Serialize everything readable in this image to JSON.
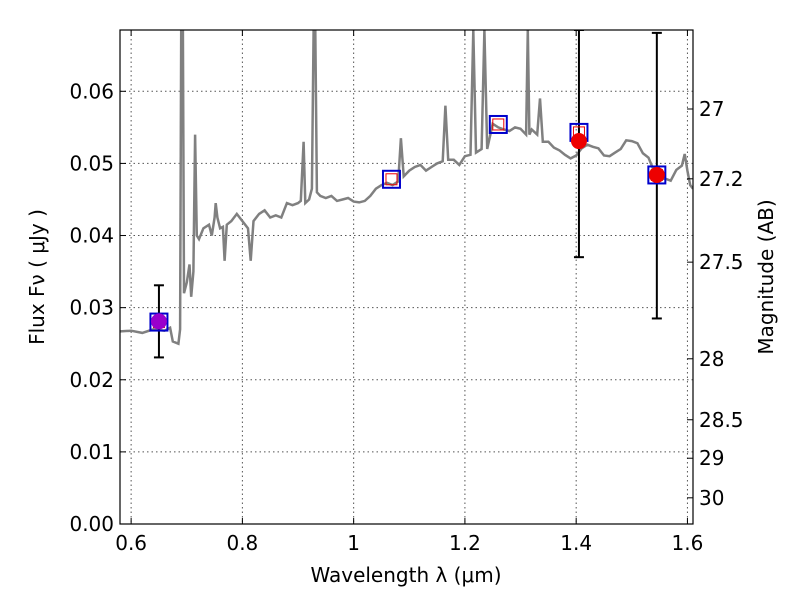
{
  "chart_data": {
    "type": "line",
    "xlabel": "Wavelength  λ (μm)",
    "ylabel": "Flux  Fν  ( μJy )",
    "y2label": "Magnitude (AB)",
    "xlim": [
      0.58,
      1.61
    ],
    "ylim": [
      0.0,
      0.0685
    ],
    "grid": true,
    "x_ticks": [
      "0.6",
      "0.8",
      "1",
      "1.2",
      "1.4",
      "1.6"
    ],
    "x_tick_values": [
      0.6,
      0.8,
      1.0,
      1.2,
      1.4,
      1.6
    ],
    "y_ticks": [
      "0.00",
      "0.01",
      "0.02",
      "0.03",
      "0.04",
      "0.05",
      "0.06"
    ],
    "y_tick_values": [
      0.0,
      0.01,
      0.02,
      0.03,
      0.04,
      0.05,
      0.06
    ],
    "mag_ticks": [
      "27",
      "27.2",
      "27.5",
      "28",
      "28.5",
      "29",
      "30"
    ],
    "mag_tick_values": [
      27.0,
      27.2,
      27.5,
      28.0,
      28.5,
      29.0,
      30.0
    ],
    "model_spectrum": {
      "color": "#808080",
      "points": [
        [
          0.58,
          0.0267
        ],
        [
          0.6,
          0.0268
        ],
        [
          0.62,
          0.0265
        ],
        [
          0.64,
          0.027
        ],
        [
          0.66,
          0.0268
        ],
        [
          0.67,
          0.0272
        ],
        [
          0.675,
          0.0253
        ],
        [
          0.685,
          0.025
        ],
        [
          0.688,
          0.027
        ],
        [
          0.69,
          0.0685
        ],
        [
          0.693,
          0.0685
        ],
        [
          0.695,
          0.032
        ],
        [
          0.7,
          0.0335
        ],
        [
          0.705,
          0.036
        ],
        [
          0.708,
          0.0315
        ],
        [
          0.712,
          0.035
        ],
        [
          0.715,
          0.054
        ],
        [
          0.718,
          0.04
        ],
        [
          0.722,
          0.0395
        ],
        [
          0.73,
          0.041
        ],
        [
          0.74,
          0.0415
        ],
        [
          0.745,
          0.04
        ],
        [
          0.75,
          0.0425
        ],
        [
          0.752,
          0.0445
        ],
        [
          0.755,
          0.0425
        ],
        [
          0.76,
          0.041
        ],
        [
          0.765,
          0.0412
        ],
        [
          0.768,
          0.0365
        ],
        [
          0.772,
          0.0415
        ],
        [
          0.78,
          0.042
        ],
        [
          0.79,
          0.043
        ],
        [
          0.8,
          0.042
        ],
        [
          0.81,
          0.041
        ],
        [
          0.815,
          0.0365
        ],
        [
          0.82,
          0.042
        ],
        [
          0.83,
          0.043
        ],
        [
          0.84,
          0.0435
        ],
        [
          0.85,
          0.0425
        ],
        [
          0.86,
          0.0428
        ],
        [
          0.87,
          0.0425
        ],
        [
          0.88,
          0.0445
        ],
        [
          0.89,
          0.0442
        ],
        [
          0.9,
          0.0445
        ],
        [
          0.905,
          0.0448
        ],
        [
          0.91,
          0.053
        ],
        [
          0.913,
          0.0445
        ],
        [
          0.92,
          0.045
        ],
        [
          0.925,
          0.0465
        ],
        [
          0.928,
          0.0685
        ],
        [
          0.931,
          0.0685
        ],
        [
          0.934,
          0.046
        ],
        [
          0.94,
          0.0455
        ],
        [
          0.95,
          0.0452
        ],
        [
          0.96,
          0.0455
        ],
        [
          0.97,
          0.0448
        ],
        [
          0.98,
          0.045
        ],
        [
          0.99,
          0.0452
        ],
        [
          1.0,
          0.0447
        ],
        [
          1.01,
          0.0446
        ],
        [
          1.02,
          0.0448
        ],
        [
          1.03,
          0.0455
        ],
        [
          1.04,
          0.0465
        ],
        [
          1.05,
          0.047
        ],
        [
          1.06,
          0.0473
        ],
        [
          1.07,
          0.047
        ],
        [
          1.08,
          0.0475
        ],
        [
          1.085,
          0.0535
        ],
        [
          1.09,
          0.0482
        ],
        [
          1.1,
          0.049
        ],
        [
          1.11,
          0.0495
        ],
        [
          1.12,
          0.0498
        ],
        [
          1.13,
          0.049
        ],
        [
          1.14,
          0.0495
        ],
        [
          1.15,
          0.05
        ],
        [
          1.16,
          0.0503
        ],
        [
          1.165,
          0.058
        ],
        [
          1.17,
          0.0505
        ],
        [
          1.18,
          0.0505
        ],
        [
          1.19,
          0.0498
        ],
        [
          1.2,
          0.051
        ],
        [
          1.21,
          0.0512
        ],
        [
          1.215,
          0.0685
        ],
        [
          1.22,
          0.0515
        ],
        [
          1.23,
          0.052
        ],
        [
          1.235,
          0.0685
        ],
        [
          1.24,
          0.052
        ],
        [
          1.25,
          0.0555
        ],
        [
          1.26,
          0.055
        ],
        [
          1.27,
          0.0547
        ],
        [
          1.28,
          0.0545
        ],
        [
          1.29,
          0.055
        ],
        [
          1.3,
          0.0548
        ],
        [
          1.31,
          0.054
        ],
        [
          1.313,
          0.0685
        ],
        [
          1.316,
          0.054
        ],
        [
          1.32,
          0.0547
        ],
        [
          1.33,
          0.054
        ],
        [
          1.335,
          0.059
        ],
        [
          1.34,
          0.053
        ],
        [
          1.35,
          0.053
        ],
        [
          1.36,
          0.0522
        ],
        [
          1.37,
          0.0518
        ],
        [
          1.38,
          0.0512
        ],
        [
          1.39,
          0.0507
        ],
        [
          1.4,
          0.0511
        ],
        [
          1.41,
          0.0521
        ],
        [
          1.42,
          0.0526
        ],
        [
          1.43,
          0.0523
        ],
        [
          1.44,
          0.0521
        ],
        [
          1.45,
          0.0511
        ],
        [
          1.46,
          0.051
        ],
        [
          1.47,
          0.0515
        ],
        [
          1.48,
          0.052
        ],
        [
          1.49,
          0.0532
        ],
        [
          1.5,
          0.0531
        ],
        [
          1.51,
          0.0528
        ],
        [
          1.52,
          0.0514
        ],
        [
          1.53,
          0.0508
        ],
        [
          1.54,
          0.0489
        ],
        [
          1.55,
          0.0478
        ],
        [
          1.56,
          0.0479
        ],
        [
          1.57,
          0.0476
        ],
        [
          1.58,
          0.0491
        ],
        [
          1.59,
          0.0497
        ],
        [
          1.595,
          0.0513
        ],
        [
          1.6,
          0.049
        ],
        [
          1.605,
          0.047
        ],
        [
          1.61,
          0.0465
        ]
      ]
    },
    "photometry": [
      {
        "x": 0.65,
        "y": 0.0281,
        "yerr_low": 0.0231,
        "yerr_high": 0.0331,
        "marker_color": "#9900cc",
        "box_color": "#0000cc"
      },
      {
        "x": 1.405,
        "y": 0.0531,
        "yerr_low": 0.037,
        "yerr_high": 0.0685,
        "marker_color": "#ee0000",
        "box_color": "#0000cc"
      },
      {
        "x": 1.545,
        "y": 0.0484,
        "yerr_low": 0.0285,
        "yerr_high": 0.0681,
        "marker_color": "#ee0000",
        "box_color": "#0000cc"
      }
    ],
    "synthetic_photometry": [
      {
        "x": 0.65,
        "y": 0.028,
        "box_color": "#0000cc",
        "inner_color": "#ee0000"
      },
      {
        "x": 1.068,
        "y": 0.0478,
        "box_color": "#0000cc",
        "inner_color": "#ee0000"
      },
      {
        "x": 1.26,
        "y": 0.0554,
        "box_color": "#0000cc",
        "inner_color": "#ee0000"
      },
      {
        "x": 1.405,
        "y": 0.0543,
        "box_color": "#0000cc",
        "inner_color": "#ee0000"
      },
      {
        "x": 1.545,
        "y": 0.0484,
        "box_color": "#0000cc",
        "inner_color": "#ee0000"
      }
    ]
  }
}
